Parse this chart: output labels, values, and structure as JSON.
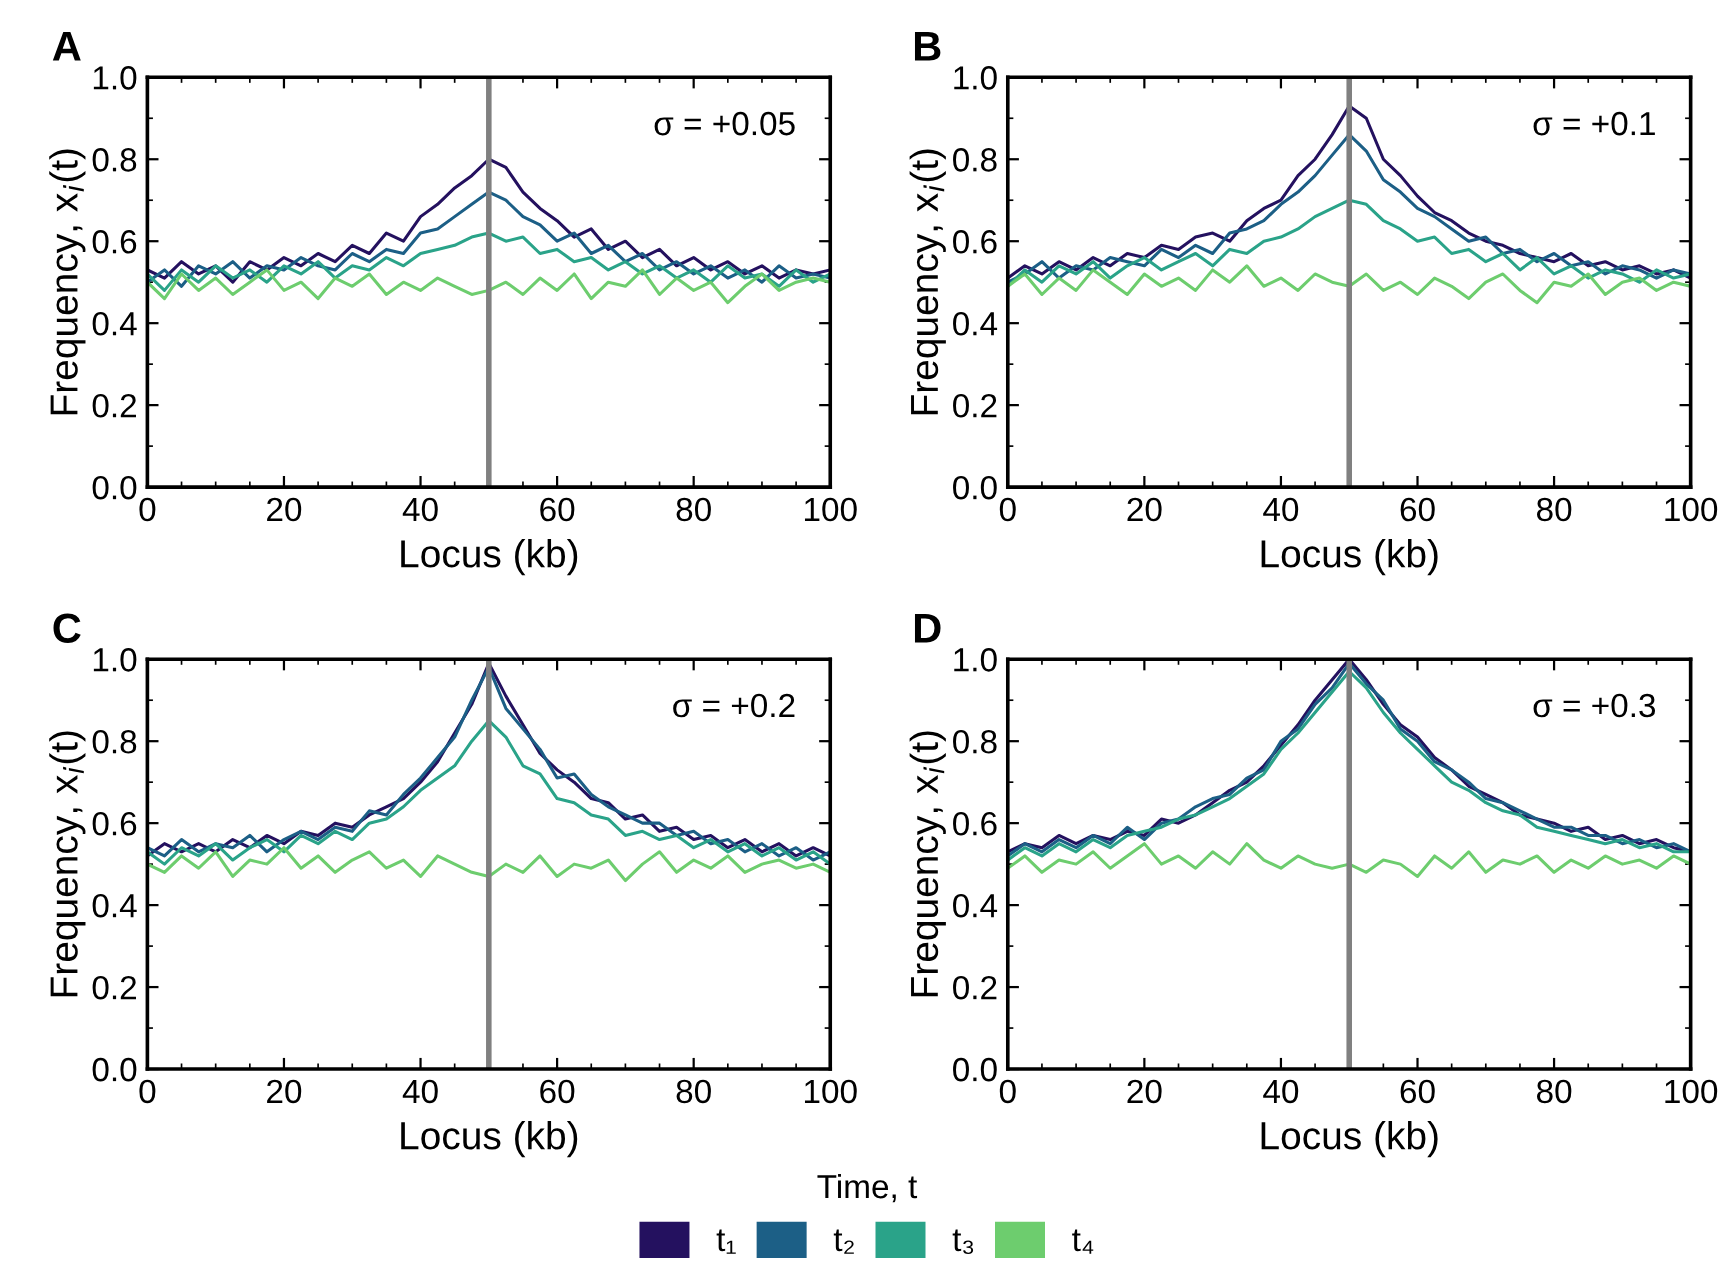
{
  "chart_data": [
    {
      "type": "line",
      "title": "A",
      "xlabel": "Locus (kb)",
      "ylabel": "Frequency, x$_{i}$(t)",
      "annotations": [
        "σ = +0.05"
      ],
      "legend": "bottom",
      "legend_title": "Time, t",
      "grid": false,
      "xlim": [
        0,
        100
      ],
      "xticks": [
        0,
        20,
        40,
        60,
        80,
        100
      ],
      "ylim": [
        0,
        1
      ],
      "yticks": [
        {
          "value": 0,
          "label": "0.0"
        },
        {
          "value": 0.2,
          "label": "0.2"
        },
        {
          "value": 0.4,
          "label": "0.4"
        },
        {
          "value": 0.6,
          "label": "0.6"
        },
        {
          "value": 0.8,
          "label": "0.8"
        },
        {
          "value": 1,
          "label": "1.0"
        }
      ],
      "ref_lines": [
        {
          "axis": "x",
          "value": 50,
          "color": "#808080"
        }
      ],
      "x": [
        0,
        2.5,
        5,
        7.5,
        10,
        12.5,
        15,
        17.5,
        20,
        22.5,
        25,
        27.5,
        30,
        32.5,
        35,
        37.5,
        40,
        42.5,
        45,
        47.5,
        50,
        52.5,
        55,
        57.5,
        60,
        62.5,
        65,
        67.5,
        70,
        72.5,
        75,
        77.5,
        80,
        82.5,
        85,
        87.5,
        90,
        92.5,
        95,
        97.5,
        100
      ],
      "series": [
        {
          "name": "t₁",
          "color": "#24115f",
          "values": [
            0.53,
            0.51,
            0.55,
            0.52,
            0.54,
            0.5,
            0.55,
            0.53,
            0.56,
            0.54,
            0.57,
            0.55,
            0.59,
            0.57,
            0.62,
            0.6,
            0.66,
            0.69,
            0.73,
            0.76,
            0.8,
            0.78,
            0.72,
            0.68,
            0.65,
            0.61,
            0.63,
            0.58,
            0.6,
            0.56,
            0.58,
            0.54,
            0.56,
            0.53,
            0.55,
            0.52,
            0.54,
            0.51,
            0.53,
            0.52,
            0.53
          ]
        },
        {
          "name": "t₂",
          "color": "#1c5f86",
          "values": [
            0.5,
            0.53,
            0.49,
            0.54,
            0.52,
            0.55,
            0.51,
            0.54,
            0.53,
            0.56,
            0.54,
            0.53,
            0.57,
            0.55,
            0.58,
            0.57,
            0.62,
            0.63,
            0.66,
            0.69,
            0.72,
            0.7,
            0.66,
            0.64,
            0.6,
            0.62,
            0.57,
            0.59,
            0.55,
            0.57,
            0.53,
            0.55,
            0.52,
            0.54,
            0.51,
            0.53,
            0.5,
            0.54,
            0.51,
            0.52,
            0.51
          ]
        },
        {
          "name": "t₃",
          "color": "#2aa389",
          "values": [
            0.52,
            0.48,
            0.53,
            0.5,
            0.54,
            0.51,
            0.53,
            0.5,
            0.54,
            0.52,
            0.55,
            0.51,
            0.54,
            0.53,
            0.56,
            0.54,
            0.57,
            0.58,
            0.59,
            0.61,
            0.62,
            0.6,
            0.61,
            0.57,
            0.58,
            0.55,
            0.56,
            0.53,
            0.55,
            0.52,
            0.54,
            0.51,
            0.53,
            0.5,
            0.54,
            0.51,
            0.52,
            0.49,
            0.53,
            0.5,
            0.52
          ]
        },
        {
          "name": "t₄",
          "color": "#6dcd6e",
          "values": [
            0.5,
            0.46,
            0.52,
            0.48,
            0.51,
            0.47,
            0.5,
            0.53,
            0.48,
            0.5,
            0.46,
            0.51,
            0.49,
            0.52,
            0.47,
            0.5,
            0.48,
            0.51,
            0.49,
            0.47,
            0.48,
            0.5,
            0.47,
            0.51,
            0.48,
            0.52,
            0.46,
            0.5,
            0.49,
            0.53,
            0.47,
            0.51,
            0.48,
            0.5,
            0.45,
            0.49,
            0.52,
            0.48,
            0.5,
            0.51,
            0.5
          ]
        }
      ]
    },
    {
      "type": "line",
      "title": "B",
      "xlabel": "Locus (kb)",
      "ylabel": "Frequency, x$_{i}$(t)",
      "annotations": [
        "σ = +0.1"
      ],
      "legend": "bottom",
      "grid": false,
      "xlim": [
        0,
        100
      ],
      "xticks": [
        0,
        20,
        40,
        60,
        80,
        100
      ],
      "ylim": [
        0,
        1
      ],
      "yticks": [
        {
          "value": 0,
          "label": "0.0"
        },
        {
          "value": 0.2,
          "label": "0.2"
        },
        {
          "value": 0.4,
          "label": "0.4"
        },
        {
          "value": 0.6,
          "label": "0.6"
        },
        {
          "value": 0.8,
          "label": "0.8"
        },
        {
          "value": 1,
          "label": "1.0"
        }
      ],
      "ref_lines": [
        {
          "axis": "x",
          "value": 50,
          "color": "#808080"
        }
      ],
      "x": [
        0,
        2.5,
        5,
        7.5,
        10,
        12.5,
        15,
        17.5,
        20,
        22.5,
        25,
        27.5,
        30,
        32.5,
        35,
        37.5,
        40,
        42.5,
        45,
        47.5,
        50,
        52.5,
        55,
        57.5,
        60,
        62.5,
        65,
        67.5,
        70,
        72.5,
        75,
        77.5,
        80,
        82.5,
        85,
        87.5,
        90,
        92.5,
        95,
        97.5,
        100
      ],
      "series": [
        {
          "name": "t₁",
          "color": "#24115f",
          "values": [
            0.51,
            0.54,
            0.52,
            0.55,
            0.53,
            0.56,
            0.54,
            0.57,
            0.56,
            0.59,
            0.58,
            0.61,
            0.62,
            0.6,
            0.65,
            0.68,
            0.7,
            0.76,
            0.8,
            0.86,
            0.93,
            0.9,
            0.8,
            0.76,
            0.71,
            0.67,
            0.65,
            0.62,
            0.6,
            0.59,
            0.57,
            0.56,
            0.55,
            0.57,
            0.54,
            0.55,
            0.53,
            0.54,
            0.52,
            0.53,
            0.51
          ]
        },
        {
          "name": "t₂",
          "color": "#1c5f86",
          "values": [
            0.5,
            0.52,
            0.55,
            0.51,
            0.54,
            0.53,
            0.56,
            0.55,
            0.54,
            0.58,
            0.56,
            0.59,
            0.57,
            0.62,
            0.63,
            0.65,
            0.69,
            0.72,
            0.76,
            0.81,
            0.86,
            0.82,
            0.75,
            0.72,
            0.68,
            0.66,
            0.63,
            0.6,
            0.61,
            0.57,
            0.58,
            0.55,
            0.57,
            0.54,
            0.55,
            0.52,
            0.54,
            0.53,
            0.51,
            0.53,
            0.52
          ]
        },
        {
          "name": "t₃",
          "color": "#2aa389",
          "values": [
            0.49,
            0.53,
            0.5,
            0.54,
            0.52,
            0.55,
            0.51,
            0.54,
            0.56,
            0.53,
            0.55,
            0.57,
            0.54,
            0.58,
            0.57,
            0.6,
            0.61,
            0.63,
            0.66,
            0.68,
            0.7,
            0.69,
            0.65,
            0.63,
            0.6,
            0.61,
            0.57,
            0.58,
            0.55,
            0.57,
            0.53,
            0.56,
            0.52,
            0.54,
            0.51,
            0.53,
            0.52,
            0.5,
            0.53,
            0.51,
            0.52
          ]
        },
        {
          "name": "t₄",
          "color": "#6dcd6e",
          "values": [
            0.49,
            0.52,
            0.47,
            0.51,
            0.48,
            0.53,
            0.5,
            0.47,
            0.52,
            0.49,
            0.51,
            0.48,
            0.53,
            0.5,
            0.54,
            0.49,
            0.51,
            0.48,
            0.52,
            0.5,
            0.49,
            0.52,
            0.48,
            0.5,
            0.47,
            0.51,
            0.49,
            0.46,
            0.5,
            0.52,
            0.48,
            0.45,
            0.5,
            0.49,
            0.52,
            0.47,
            0.5,
            0.51,
            0.48,
            0.5,
            0.49
          ]
        }
      ]
    },
    {
      "type": "line",
      "title": "C",
      "xlabel": "Locus (kb)",
      "ylabel": "Frequency, x$_{i}$(t)",
      "annotations": [
        "σ = +0.2"
      ],
      "legend": "bottom",
      "grid": false,
      "xlim": [
        0,
        100
      ],
      "xticks": [
        0,
        20,
        40,
        60,
        80,
        100
      ],
      "ylim": [
        0,
        1
      ],
      "yticks": [
        {
          "value": 0,
          "label": "0.0"
        },
        {
          "value": 0.2,
          "label": "0.2"
        },
        {
          "value": 0.4,
          "label": "0.4"
        },
        {
          "value": 0.6,
          "label": "0.6"
        },
        {
          "value": 0.8,
          "label": "0.8"
        },
        {
          "value": 1,
          "label": "1.0"
        }
      ],
      "ref_lines": [
        {
          "axis": "x",
          "value": 50,
          "color": "#808080"
        }
      ],
      "x": [
        0,
        2.5,
        5,
        7.5,
        10,
        12.5,
        15,
        17.5,
        20,
        22.5,
        25,
        27.5,
        30,
        32.5,
        35,
        37.5,
        40,
        42.5,
        45,
        47.5,
        50,
        52.5,
        55,
        57.5,
        60,
        62.5,
        65,
        67.5,
        70,
        72.5,
        75,
        77.5,
        80,
        82.5,
        85,
        87.5,
        90,
        92.5,
        95,
        97.5,
        100
      ],
      "series": [
        {
          "name": "t₁",
          "color": "#24115f",
          "values": [
            0.52,
            0.55,
            0.53,
            0.55,
            0.53,
            0.56,
            0.54,
            0.57,
            0.55,
            0.58,
            0.57,
            0.6,
            0.59,
            0.62,
            0.64,
            0.66,
            0.7,
            0.75,
            0.82,
            0.89,
            0.99,
            0.91,
            0.84,
            0.77,
            0.73,
            0.7,
            0.66,
            0.65,
            0.61,
            0.62,
            0.58,
            0.59,
            0.56,
            0.57,
            0.54,
            0.56,
            0.53,
            0.55,
            0.52,
            0.54,
            0.52
          ]
        },
        {
          "name": "t₂",
          "color": "#1c5f86",
          "values": [
            0.54,
            0.52,
            0.56,
            0.53,
            0.55,
            0.54,
            0.57,
            0.53,
            0.56,
            0.58,
            0.56,
            0.59,
            0.58,
            0.63,
            0.62,
            0.67,
            0.71,
            0.76,
            0.81,
            0.9,
            0.98,
            0.88,
            0.83,
            0.78,
            0.71,
            0.72,
            0.67,
            0.64,
            0.62,
            0.6,
            0.6,
            0.57,
            0.58,
            0.55,
            0.56,
            0.53,
            0.55,
            0.52,
            0.54,
            0.51,
            0.53
          ]
        },
        {
          "name": "t₃",
          "color": "#2aa389",
          "values": [
            0.53,
            0.5,
            0.54,
            0.52,
            0.55,
            0.51,
            0.54,
            0.56,
            0.53,
            0.57,
            0.55,
            0.58,
            0.56,
            0.6,
            0.61,
            0.64,
            0.68,
            0.71,
            0.74,
            0.8,
            0.85,
            0.81,
            0.74,
            0.72,
            0.66,
            0.65,
            0.62,
            0.61,
            0.57,
            0.58,
            0.56,
            0.57,
            0.54,
            0.56,
            0.53,
            0.55,
            0.52,
            0.54,
            0.51,
            0.53,
            0.5
          ]
        },
        {
          "name": "t₄",
          "color": "#6dcd6e",
          "values": [
            0.5,
            0.48,
            0.52,
            0.49,
            0.53,
            0.47,
            0.51,
            0.5,
            0.54,
            0.49,
            0.52,
            0.48,
            0.51,
            0.53,
            0.49,
            0.51,
            0.47,
            0.52,
            0.5,
            0.48,
            0.47,
            0.5,
            0.48,
            0.52,
            0.47,
            0.5,
            0.49,
            0.51,
            0.46,
            0.5,
            0.53,
            0.48,
            0.51,
            0.49,
            0.52,
            0.48,
            0.5,
            0.51,
            0.49,
            0.5,
            0.48
          ]
        }
      ]
    },
    {
      "type": "line",
      "title": "D",
      "xlabel": "Locus (kb)",
      "ylabel": "Frequency, x$_{i}$(t)",
      "annotations": [
        "σ = +0.3"
      ],
      "legend": "bottom",
      "grid": false,
      "xlim": [
        0,
        100
      ],
      "xticks": [
        0,
        20,
        40,
        60,
        80,
        100
      ],
      "ylim": [
        0,
        1
      ],
      "yticks": [
        {
          "value": 0,
          "label": "0.0"
        },
        {
          "value": 0.2,
          "label": "0.2"
        },
        {
          "value": 0.4,
          "label": "0.4"
        },
        {
          "value": 0.6,
          "label": "0.6"
        },
        {
          "value": 0.8,
          "label": "0.8"
        },
        {
          "value": 1,
          "label": "1.0"
        }
      ],
      "ref_lines": [
        {
          "axis": "x",
          "value": 50,
          "color": "#808080"
        }
      ],
      "x": [
        0,
        2.5,
        5,
        7.5,
        10,
        12.5,
        15,
        17.5,
        20,
        22.5,
        25,
        27.5,
        30,
        32.5,
        35,
        37.5,
        40,
        42.5,
        45,
        47.5,
        50,
        52.5,
        55,
        57.5,
        60,
        62.5,
        65,
        67.5,
        70,
        72.5,
        75,
        77.5,
        80,
        82.5,
        85,
        87.5,
        90,
        92.5,
        95,
        97.5,
        100
      ],
      "series": [
        {
          "name": "t₁",
          "color": "#24115f",
          "values": [
            0.53,
            0.55,
            0.54,
            0.57,
            0.55,
            0.57,
            0.56,
            0.58,
            0.57,
            0.61,
            0.6,
            0.62,
            0.65,
            0.68,
            0.7,
            0.74,
            0.79,
            0.84,
            0.9,
            0.95,
            1.0,
            0.95,
            0.89,
            0.84,
            0.81,
            0.76,
            0.73,
            0.69,
            0.67,
            0.65,
            0.62,
            0.61,
            0.6,
            0.58,
            0.59,
            0.56,
            0.57,
            0.55,
            0.56,
            0.54,
            0.53
          ]
        },
        {
          "name": "t₂",
          "color": "#1c5f86",
          "values": [
            0.52,
            0.55,
            0.53,
            0.56,
            0.54,
            0.57,
            0.55,
            0.59,
            0.56,
            0.6,
            0.61,
            0.64,
            0.66,
            0.67,
            0.71,
            0.73,
            0.8,
            0.83,
            0.89,
            0.93,
            0.99,
            0.94,
            0.9,
            0.83,
            0.8,
            0.75,
            0.73,
            0.7,
            0.66,
            0.65,
            0.63,
            0.61,
            0.59,
            0.59,
            0.57,
            0.57,
            0.55,
            0.56,
            0.54,
            0.55,
            0.53
          ]
        },
        {
          "name": "t₃",
          "color": "#2aa389",
          "values": [
            0.51,
            0.54,
            0.52,
            0.55,
            0.53,
            0.56,
            0.54,
            0.57,
            0.58,
            0.59,
            0.61,
            0.62,
            0.64,
            0.66,
            0.69,
            0.72,
            0.78,
            0.82,
            0.87,
            0.92,
            0.97,
            0.93,
            0.87,
            0.82,
            0.78,
            0.74,
            0.7,
            0.68,
            0.65,
            0.63,
            0.62,
            0.59,
            0.58,
            0.57,
            0.56,
            0.55,
            0.56,
            0.54,
            0.55,
            0.53,
            0.53
          ]
        },
        {
          "name": "t₄",
          "color": "#6dcd6e",
          "values": [
            0.49,
            0.52,
            0.48,
            0.51,
            0.5,
            0.53,
            0.49,
            0.52,
            0.55,
            0.5,
            0.52,
            0.49,
            0.53,
            0.5,
            0.55,
            0.51,
            0.49,
            0.52,
            0.5,
            0.49,
            0.5,
            0.48,
            0.51,
            0.5,
            0.47,
            0.52,
            0.49,
            0.53,
            0.48,
            0.51,
            0.5,
            0.52,
            0.48,
            0.51,
            0.49,
            0.52,
            0.5,
            0.51,
            0.49,
            0.52,
            0.5
          ]
        }
      ]
    }
  ]
}
